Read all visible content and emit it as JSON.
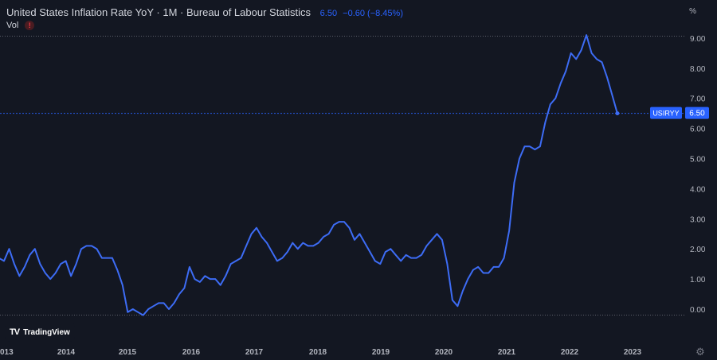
{
  "header": {
    "title": "United States Inflation Rate YoY · 1M · Bureau of Labour Statistics",
    "last_value": "6.50",
    "change": "−0.60 (−8.45%)"
  },
  "vol_label": "Vol",
  "warning_glyph": "!",
  "unit_label": "%",
  "symbol_tag": "USIRYY",
  "logo_text": "TradingView",
  "colors": {
    "background": "#131722",
    "line": "#2962ff",
    "line_stroke": "#3d6cf5",
    "tag_bg": "#2962ff",
    "tick_text": "#b2b5be"
  },
  "chart_data": {
    "type": "line",
    "title": "United States Inflation Rate YoY",
    "xlabel": "",
    "ylabel": "%",
    "ylim": [
      -0.2,
      9.1
    ],
    "y_ticks": [
      "9.00",
      "8.00",
      "7.00",
      "6.00",
      "5.00",
      "4.00",
      "3.00",
      "2.00",
      "1.00",
      "0.00"
    ],
    "x_ticks": [
      "013",
      "2014",
      "2015",
      "2016",
      "2017",
      "2018",
      "2019",
      "2020",
      "2021",
      "2022",
      "2023"
    ],
    "grid": false,
    "series": [
      {
        "name": "USIRYY",
        "dates": [
          "2012-12",
          "2013-01",
          "2013-02",
          "2013-03",
          "2013-04",
          "2013-05",
          "2013-06",
          "2013-07",
          "2013-08",
          "2013-09",
          "2013-10",
          "2013-11",
          "2013-12",
          "2014-01",
          "2014-02",
          "2014-03",
          "2014-04",
          "2014-05",
          "2014-06",
          "2014-07",
          "2014-08",
          "2014-09",
          "2014-10",
          "2014-11",
          "2014-12",
          "2015-01",
          "2015-02",
          "2015-03",
          "2015-04",
          "2015-05",
          "2015-06",
          "2015-07",
          "2015-08",
          "2015-09",
          "2015-10",
          "2015-11",
          "2015-12",
          "2016-01",
          "2016-02",
          "2016-03",
          "2016-04",
          "2016-05",
          "2016-06",
          "2016-07",
          "2016-08",
          "2016-09",
          "2016-10",
          "2016-11",
          "2016-12",
          "2017-01",
          "2017-02",
          "2017-03",
          "2017-04",
          "2017-05",
          "2017-06",
          "2017-07",
          "2017-08",
          "2017-09",
          "2017-10",
          "2017-11",
          "2017-12",
          "2018-01",
          "2018-02",
          "2018-03",
          "2018-04",
          "2018-05",
          "2018-06",
          "2018-07",
          "2018-08",
          "2018-09",
          "2018-10",
          "2018-11",
          "2018-12",
          "2019-01",
          "2019-02",
          "2019-03",
          "2019-04",
          "2019-05",
          "2019-06",
          "2019-07",
          "2019-08",
          "2019-09",
          "2019-10",
          "2019-11",
          "2019-12",
          "2020-01",
          "2020-02",
          "2020-03",
          "2020-04",
          "2020-05",
          "2020-06",
          "2020-07",
          "2020-08",
          "2020-09",
          "2020-10",
          "2020-11",
          "2020-12",
          "2021-01",
          "2021-02",
          "2021-03",
          "2021-04",
          "2021-05",
          "2021-06",
          "2021-07",
          "2021-08",
          "2021-09",
          "2021-10",
          "2021-11",
          "2021-12",
          "2022-01",
          "2022-02",
          "2022-03",
          "2022-04",
          "2022-05",
          "2022-06",
          "2022-07",
          "2022-08",
          "2022-09",
          "2022-10",
          "2022-11",
          "2022-12"
        ],
        "values": [
          1.7,
          1.6,
          2.0,
          1.5,
          1.1,
          1.4,
          1.8,
          2.0,
          1.5,
          1.2,
          1.0,
          1.2,
          1.5,
          1.6,
          1.1,
          1.5,
          2.0,
          2.1,
          2.1,
          2.0,
          1.7,
          1.7,
          1.7,
          1.3,
          0.8,
          -0.1,
          0.0,
          -0.1,
          -0.2,
          0.0,
          0.1,
          0.2,
          0.2,
          0.0,
          0.2,
          0.5,
          0.7,
          1.4,
          1.0,
          0.9,
          1.1,
          1.0,
          1.0,
          0.8,
          1.1,
          1.5,
          1.6,
          1.7,
          2.1,
          2.5,
          2.7,
          2.4,
          2.2,
          1.9,
          1.6,
          1.7,
          1.9,
          2.2,
          2.0,
          2.2,
          2.1,
          2.1,
          2.2,
          2.4,
          2.5,
          2.8,
          2.9,
          2.9,
          2.7,
          2.3,
          2.5,
          2.2,
          1.9,
          1.6,
          1.5,
          1.9,
          2.0,
          1.8,
          1.6,
          1.8,
          1.7,
          1.7,
          1.8,
          2.1,
          2.3,
          2.5,
          2.3,
          1.5,
          0.3,
          0.1,
          0.6,
          1.0,
          1.3,
          1.4,
          1.2,
          1.2,
          1.4,
          1.4,
          1.7,
          2.6,
          4.2,
          5.0,
          5.4,
          5.4,
          5.3,
          5.4,
          6.2,
          6.8,
          7.0,
          7.5,
          7.9,
          8.5,
          8.3,
          8.6,
          9.1,
          8.5,
          8.3,
          8.2,
          7.7,
          7.1,
          6.5
        ]
      }
    ],
    "last_value": 6.5
  }
}
